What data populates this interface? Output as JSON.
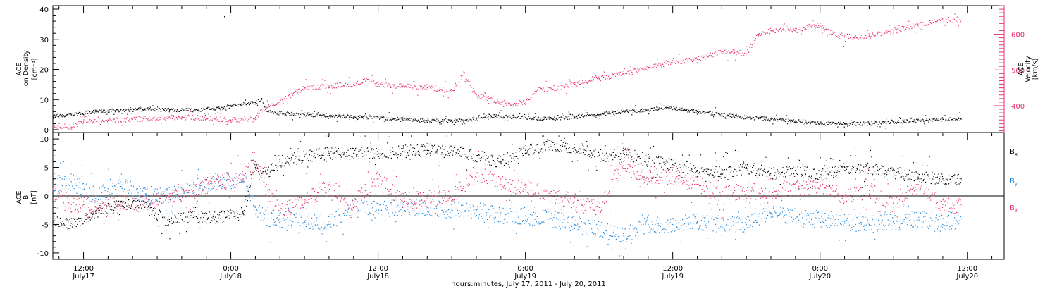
{
  "colors": {
    "black": "#000000",
    "pink": "#e8336b",
    "blue": "#2288dd"
  },
  "xlabel": "hours:minutes, July 17, 2011 - July 20, 2011",
  "x_ticks": [
    {
      "hour": 12,
      "time": "12:00",
      "date": "July17"
    },
    {
      "hour": 24,
      "time": "0:00",
      "date": "July18"
    },
    {
      "hour": 36,
      "time": "12:00",
      "date": "July18"
    },
    {
      "hour": 48,
      "time": "0:00",
      "date": "July19"
    },
    {
      "hour": 60,
      "time": "12:00",
      "date": "July19"
    },
    {
      "hour": 72,
      "time": "0:00",
      "date": "July20"
    },
    {
      "hour": 84,
      "time": "12:00",
      "date": "July20"
    }
  ],
  "top_panel": {
    "left_label": [
      "ACE",
      "Ion Density",
      "[cm⁻³]"
    ],
    "right_label": [
      "ACE",
      "Velocity",
      "[km/s]"
    ]
  },
  "bottom_panel": {
    "left_label": [
      "ACE",
      "B",
      "[nT]"
    ]
  },
  "chart_data": [
    {
      "type": "scatter",
      "panel": "top",
      "xlabel": "hours:minutes, July 17, 2011 - July 20, 2011",
      "x_unit": "hours since 2011-07-17 00:00",
      "xlim": [
        9.5,
        87
      ],
      "grid": false,
      "y_left": {
        "label": "ACE Ion Density [cm⁻³]",
        "ylim": [
          0,
          40
        ],
        "ticks": [
          0,
          10,
          20,
          30,
          40
        ]
      },
      "y_right": {
        "label": "ACE Velocity [km/s]",
        "ylim": [
          325,
          680
        ],
        "ticks": [
          400,
          500,
          600
        ]
      },
      "series": [
        {
          "axis": "left",
          "color": "#000000",
          "x": [
            9.5,
            11,
            13,
            15,
            17,
            19,
            21,
            23,
            24,
            25,
            26,
            26.5,
            27,
            28,
            30,
            32,
            34,
            36,
            38,
            40,
            42,
            44,
            45,
            46,
            47,
            48,
            50,
            52,
            54,
            56,
            58,
            59.5,
            61,
            62,
            63,
            64,
            65,
            66,
            68,
            70,
            72,
            74,
            76,
            78,
            80,
            82,
            83.5
          ],
          "y": [
            4.5,
            5,
            6,
            6.5,
            6.8,
            6.5,
            6.5,
            7,
            7.8,
            8.5,
            9,
            10,
            6,
            5.5,
            5,
            4.5,
            4.2,
            4,
            3.5,
            3,
            3,
            3.5,
            4.5,
            4.5,
            4,
            4,
            3.5,
            4.2,
            5,
            6,
            6.5,
            7.5,
            6.5,
            6,
            5.5,
            5,
            4.5,
            4,
            3.5,
            3,
            2,
            2,
            2,
            2.5,
            3,
            3.5,
            3.5
          ]
        },
        {
          "axis": "right",
          "color": "#e8336b",
          "x": [
            9.5,
            11,
            12,
            14,
            16,
            18,
            20,
            22,
            24,
            26,
            26.5,
            27,
            28,
            29,
            30,
            32,
            34,
            35,
            36,
            37,
            38,
            40,
            41,
            42,
            43,
            44,
            45,
            46,
            47,
            48,
            49,
            50,
            52,
            54,
            56,
            58,
            60,
            62,
            63,
            64,
            65,
            66,
            67,
            68,
            69,
            70,
            71,
            72,
            73,
            74,
            75,
            76,
            78,
            80,
            82,
            83.5
          ],
          "y": [
            345,
            340,
            355,
            360,
            362,
            365,
            368,
            365,
            360,
            362,
            390,
            395,
            410,
            430,
            450,
            455,
            460,
            470,
            460,
            455,
            455,
            450,
            445,
            440,
            490,
            430,
            420,
            410,
            405,
            410,
            445,
            445,
            460,
            475,
            490,
            505,
            520,
            530,
            540,
            550,
            550,
            545,
            600,
            610,
            615,
            610,
            620,
            625,
            600,
            595,
            590,
            595,
            610,
            625,
            640,
            640
          ]
        }
      ],
      "annotations": [
        {
          "x": 23.5,
          "y": 37.5,
          "axis": "left",
          "note": "isolated density outlier"
        }
      ]
    },
    {
      "type": "scatter",
      "panel": "bottom",
      "x_unit": "hours since 2011-07-17 00:00",
      "xlim": [
        9.5,
        87
      ],
      "ylim": [
        -11,
        11
      ],
      "y_ticks": [
        -10,
        -5,
        0,
        5,
        10
      ],
      "grid": false,
      "zero_line": true,
      "series": [
        {
          "name": "Bx",
          "color": "#000000",
          "x": [
            9.5,
            11,
            13,
            15,
            17,
            19,
            21,
            23,
            25,
            26,
            27,
            28,
            30,
            32,
            34,
            36,
            38,
            40,
            42,
            44,
            46,
            48,
            50,
            52,
            54,
            56,
            58,
            60,
            62,
            64,
            66,
            68,
            70,
            72,
            74,
            76,
            78,
            80,
            82,
            83.5
          ],
          "y": [
            -4.5,
            -4.8,
            -3,
            -1,
            -2,
            -4.5,
            -3.5,
            -4,
            -3,
            5,
            4,
            6,
            7,
            7.5,
            7.5,
            7.5,
            7.8,
            8,
            8,
            7,
            6,
            8,
            9,
            8.5,
            7,
            7.5,
            6,
            5.5,
            4.5,
            4,
            5,
            4,
            4.5,
            3.5,
            5,
            5,
            4,
            3.5,
            3,
            3
          ]
        },
        {
          "name": "By",
          "color": "#2288dd",
          "x": [
            9.5,
            11,
            13,
            15,
            17,
            19,
            21,
            23,
            25,
            26,
            27,
            28,
            30,
            32,
            34,
            36,
            38,
            40,
            42,
            44,
            46,
            48,
            50,
            52,
            54,
            56,
            58,
            60,
            62,
            64,
            66,
            68,
            70,
            72,
            74,
            76,
            78,
            80,
            82,
            83.5
          ],
          "y": [
            2,
            2.5,
            0,
            2.5,
            0,
            0,
            1.5,
            2.5,
            3,
            -2,
            -4,
            -4,
            -4.5,
            -5,
            -2,
            -2.5,
            -2,
            -2,
            -2.5,
            -2.5,
            -3.5,
            -3.5,
            -4,
            -5,
            -6,
            -7,
            -5,
            -5,
            -4.5,
            -5,
            -5,
            -3,
            -4,
            -4,
            -4.5,
            -5,
            -4.5,
            -4,
            -5,
            -4
          ]
        },
        {
          "name": "Bz",
          "color": "#e8336b",
          "x": [
            9.5,
            11,
            13,
            15,
            17,
            19,
            21,
            23,
            25,
            26,
            27,
            28,
            30,
            32,
            34,
            36,
            38,
            40,
            42,
            44,
            46,
            48,
            50,
            52,
            54,
            56,
            58,
            60,
            62,
            64,
            66,
            68,
            70,
            72,
            74,
            76,
            78,
            80,
            82,
            83.5
          ],
          "y": [
            1,
            -1.5,
            -2,
            -1.5,
            -1,
            0,
            1,
            2.5,
            3,
            6,
            1,
            -3,
            -1,
            2,
            -1.5,
            3,
            -1,
            -0.5,
            0,
            4,
            2,
            1.5,
            0.5,
            -1,
            -2,
            6,
            3,
            3.5,
            2,
            0,
            1,
            0,
            1.5,
            2,
            0,
            1,
            -2,
            2,
            -1.5,
            -1.5
          ]
        }
      ]
    }
  ]
}
